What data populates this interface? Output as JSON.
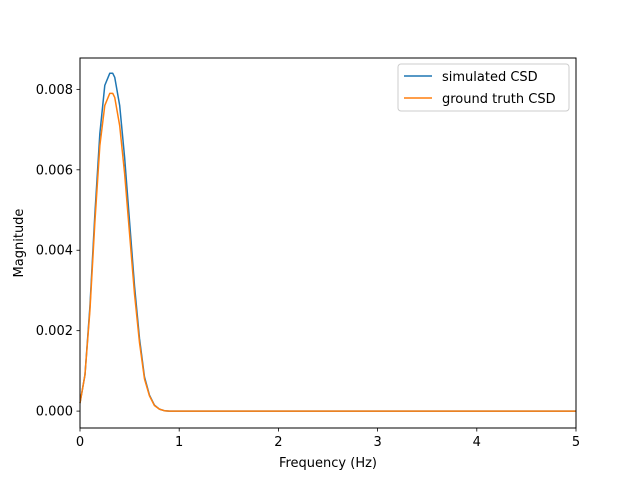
{
  "chart_data": {
    "type": "line",
    "title": "",
    "xlabel": "Frequency (Hz)",
    "ylabel": "Magnitude",
    "xlim": [
      0,
      5
    ],
    "ylim": [
      -0.00042,
      0.00878
    ],
    "xticks": [
      0,
      1,
      2,
      3,
      4,
      5
    ],
    "xtick_labels": [
      "0",
      "1",
      "2",
      "3",
      "4",
      "5"
    ],
    "yticks": [
      0,
      0.002,
      0.004,
      0.006,
      0.008
    ],
    "ytick_labels": [
      "0.000",
      "0.002",
      "0.004",
      "0.006",
      "0.008"
    ],
    "grid": false,
    "legend_position": "top-right",
    "series": [
      {
        "name": "simulated CSD",
        "color": "#1f77b4",
        "x": [
          0,
          0.05,
          0.1,
          0.15,
          0.2,
          0.25,
          0.3,
          0.33,
          0.35,
          0.4,
          0.45,
          0.5,
          0.55,
          0.6,
          0.65,
          0.7,
          0.75,
          0.8,
          0.85,
          0.9,
          1.0,
          1.5,
          2.0,
          3.0,
          4.0,
          5.0
        ],
        "y": [
          0.0002,
          0.0009,
          0.0026,
          0.0049,
          0.0069,
          0.0081,
          0.0084,
          0.0084,
          0.0083,
          0.0076,
          0.0063,
          0.0047,
          0.0031,
          0.0018,
          0.00085,
          0.0004,
          0.00015,
          5e-05,
          1e-05,
          0.0,
          0.0,
          0.0,
          0.0,
          0.0,
          0.0,
          0.0
        ]
      },
      {
        "name": "ground truth CSD",
        "color": "#ff7f0e",
        "x": [
          0,
          0.05,
          0.1,
          0.15,
          0.2,
          0.25,
          0.3,
          0.33,
          0.35,
          0.4,
          0.45,
          0.5,
          0.55,
          0.6,
          0.65,
          0.7,
          0.75,
          0.8,
          0.85,
          0.9,
          1.0,
          1.5,
          2.0,
          3.0,
          4.0,
          5.0
        ],
        "y": [
          0.0002,
          0.0009,
          0.0025,
          0.0047,
          0.0066,
          0.0076,
          0.0079,
          0.0079,
          0.0078,
          0.0071,
          0.0059,
          0.0044,
          0.0029,
          0.0017,
          0.0008,
          0.00038,
          0.00014,
          5e-05,
          1e-05,
          0.0,
          0.0,
          0.0,
          0.0,
          0.0,
          0.0,
          0.0
        ]
      }
    ]
  }
}
